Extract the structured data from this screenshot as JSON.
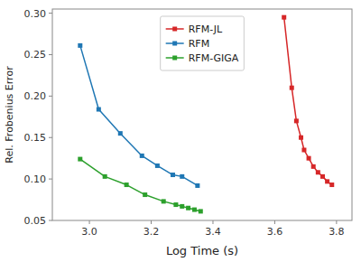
{
  "chart_data": {
    "type": "line",
    "xlabel": "Log Time (s)",
    "ylabel": "Rel. Frobenius Error",
    "xlim": [
      2.88,
      3.85
    ],
    "ylim": [
      0.05,
      0.305
    ],
    "xticks": [
      {
        "value": 3.0,
        "label": "3.0"
      },
      3.2,
      3.4,
      3.6,
      3.8
    ],
    "yticks": [
      0.05,
      {
        "value": 0.1,
        "label": "0.10"
      },
      0.15,
      {
        "value": 0.2,
        "label": "0.20"
      },
      0.25,
      {
        "value": 0.3,
        "label": "0.30"
      }
    ],
    "grid": false,
    "legend": "upper center",
    "marker": "square",
    "series": [
      {
        "name": "RFM-JL",
        "color": "#d62728",
        "x": [
          3.63,
          3.655,
          3.67,
          3.685,
          3.695,
          3.71,
          3.725,
          3.74,
          3.755,
          3.77,
          3.785
        ],
        "values": [
          0.295,
          0.21,
          0.17,
          0.15,
          0.135,
          0.125,
          0.115,
          0.108,
          0.103,
          0.097,
          0.093
        ]
      },
      {
        "name": "RFM",
        "color": "#1f77b4",
        "x": [
          2.97,
          3.03,
          3.1,
          3.17,
          3.22,
          3.27,
          3.3,
          3.35
        ],
        "values": [
          0.261,
          0.184,
          0.155,
          0.128,
          0.116,
          0.105,
          0.103,
          0.092
        ]
      },
      {
        "name": "RFM-GIGA",
        "color": "#2ca02c",
        "x": [
          2.97,
          3.05,
          3.12,
          3.18,
          3.24,
          3.28,
          3.3,
          3.32,
          3.34,
          3.36
        ],
        "values": [
          0.124,
          0.103,
          0.093,
          0.081,
          0.073,
          0.069,
          0.067,
          0.065,
          0.063,
          0.061
        ]
      }
    ]
  }
}
